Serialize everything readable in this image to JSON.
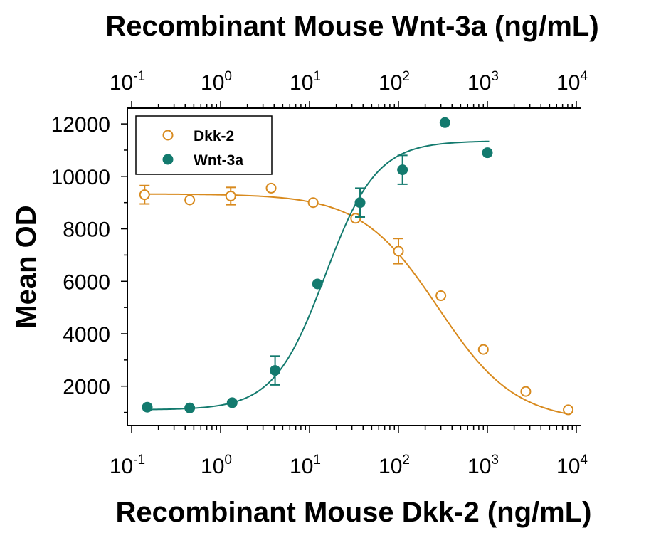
{
  "chart_data": {
    "type": "scatter",
    "title_top": "Recombinant Mouse Wnt-3a (ng/mL)",
    "xlabel": "Recombinant Mouse Dkk-2 (ng/mL)",
    "ylabel": "Mean OD",
    "x_scale": "log",
    "xlim": [
      0.1,
      10000
    ],
    "ylim": [
      500,
      12600
    ],
    "x_ticks": [
      {
        "value": 0.1,
        "base": "10",
        "exp": "-1"
      },
      {
        "value": 1,
        "base": "10",
        "exp": "0"
      },
      {
        "value": 10,
        "base": "10",
        "exp": "1"
      },
      {
        "value": 100,
        "base": "10",
        "exp": "2"
      },
      {
        "value": 1000,
        "base": "10",
        "exp": "3"
      },
      {
        "value": 10000,
        "base": "10",
        "exp": "4"
      }
    ],
    "y_ticks": [
      "2000",
      "4000",
      "6000",
      "8000",
      "10000",
      "12000"
    ],
    "legend_position": "top-left",
    "series": [
      {
        "name": "Dkk-2",
        "color": "#D88A1E",
        "marker": "open-circle",
        "points": [
          {
            "x": 0.14,
            "y": 9300,
            "err": 350
          },
          {
            "x": 0.45,
            "y": 9100,
            "err": 0
          },
          {
            "x": 1.3,
            "y": 9250,
            "err": 330
          },
          {
            "x": 3.7,
            "y": 9550,
            "err": 0
          },
          {
            "x": 11,
            "y": 9000,
            "err": 0
          },
          {
            "x": 33,
            "y": 8400,
            "err": 0
          },
          {
            "x": 100,
            "y": 7150,
            "err": 480
          },
          {
            "x": 300,
            "y": 5450,
            "err": 0
          },
          {
            "x": 900,
            "y": 3400,
            "err": 0
          },
          {
            "x": 2700,
            "y": 1800,
            "err": 0
          },
          {
            "x": 8100,
            "y": 1100,
            "err": 0
          }
        ],
        "fit": {
          "bottom": 650,
          "top": 9330,
          "ec50": 280,
          "hill": -1.0
        }
      },
      {
        "name": "Wnt-3a",
        "color": "#137A6E",
        "marker": "filled-circle",
        "points": [
          {
            "x": 0.15,
            "y": 1200,
            "err": 0
          },
          {
            "x": 0.45,
            "y": 1170,
            "err": 0
          },
          {
            "x": 1.35,
            "y": 1370,
            "err": 0
          },
          {
            "x": 4.1,
            "y": 2600,
            "err": 550
          },
          {
            "x": 12.3,
            "y": 5900,
            "err": 0
          },
          {
            "x": 37,
            "y": 9000,
            "err": 550
          },
          {
            "x": 111,
            "y": 10250,
            "err": 550
          },
          {
            "x": 333,
            "y": 12050,
            "err": 0
          },
          {
            "x": 1000,
            "y": 10900,
            "err": 0
          }
        ],
        "fit": {
          "bottom": 1100,
          "top": 11350,
          "ec50": 15,
          "hill": 1.5
        }
      }
    ]
  }
}
